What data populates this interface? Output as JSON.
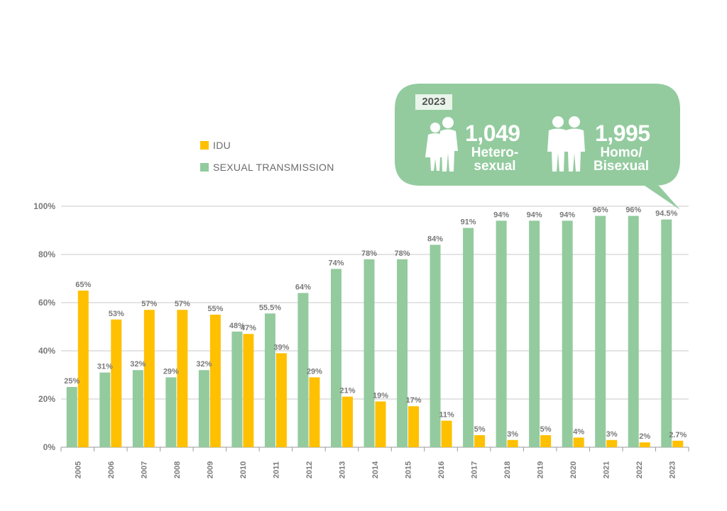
{
  "legend": [
    {
      "label": "IDU",
      "color": "#FFC000"
    },
    {
      "label": "SEXUAL TRANSMISSION",
      "color": "#93CB9E"
    }
  ],
  "callout": {
    "year": "2023",
    "hetero_count": "1,049",
    "hetero_label_1": "Hetero-",
    "hetero_label_2": "sexual",
    "homo_count": "1,995",
    "homo_label_1": "Homo/",
    "homo_label_2": "Bisexual",
    "color": "#93CB9E",
    "icons": [
      "couple-icon",
      "two-men-icon"
    ]
  },
  "chart_data": {
    "type": "bar",
    "categories": [
      "2005",
      "2006",
      "2007",
      "2008",
      "2009",
      "2010",
      "2011",
      "2012",
      "2013",
      "2014",
      "2015",
      "2016",
      "2017",
      "2018",
      "2019",
      "2020",
      "2021",
      "2022",
      "2023"
    ],
    "series": [
      {
        "name": "SEXUAL TRANSMISSION",
        "color": "#93CB9E",
        "values": [
          25,
          31,
          32,
          29,
          32,
          48,
          55.5,
          64,
          74,
          78,
          78,
          84,
          91,
          94,
          94,
          94,
          96,
          96,
          94.5
        ],
        "labels": [
          "25%",
          "31%",
          "32%",
          "29%",
          "32%",
          "48%",
          "55.5%",
          "64%",
          "74%",
          "78%",
          "78%",
          "84%",
          "91%",
          "94%",
          "94%",
          "94%",
          "96%",
          "96%",
          "94.5%"
        ]
      },
      {
        "name": "IDU",
        "color": "#FFC000",
        "values": [
          65,
          53,
          57,
          57,
          55,
          47,
          39,
          29,
          21,
          19,
          17,
          11,
          5,
          3,
          5,
          4,
          3,
          2,
          2.7
        ],
        "labels": [
          "65%",
          "53%",
          "57%",
          "57%",
          "55%",
          "47%",
          "39%",
          "29%",
          "21%",
          "19%",
          "17%",
          "11%",
          "5%",
          "3%",
          "5%",
          "4%",
          "3%",
          "2%",
          "2.7%"
        ]
      }
    ],
    "yticks": [
      "0%",
      "20%",
      "40%",
      "60%",
      "80%",
      "100%"
    ],
    "ylim": [
      0,
      100
    ],
    "grid": true,
    "legend_position": "top-left"
  }
}
